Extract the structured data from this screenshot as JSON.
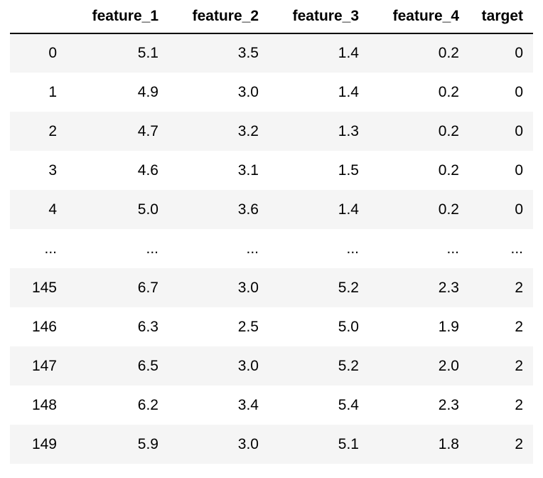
{
  "dataframe": {
    "index_header": "",
    "columns": [
      "feature_1",
      "feature_2",
      "feature_3",
      "feature_4",
      "target"
    ],
    "rows": [
      {
        "index": "0",
        "cells": [
          "5.1",
          "3.5",
          "1.4",
          "0.2",
          "0"
        ]
      },
      {
        "index": "1",
        "cells": [
          "4.9",
          "3.0",
          "1.4",
          "0.2",
          "0"
        ]
      },
      {
        "index": "2",
        "cells": [
          "4.7",
          "3.2",
          "1.3",
          "0.2",
          "0"
        ]
      },
      {
        "index": "3",
        "cells": [
          "4.6",
          "3.1",
          "1.5",
          "0.2",
          "0"
        ]
      },
      {
        "index": "4",
        "cells": [
          "5.0",
          "3.6",
          "1.4",
          "0.2",
          "0"
        ]
      },
      {
        "index": "...",
        "cells": [
          "...",
          "...",
          "...",
          "...",
          "..."
        ]
      },
      {
        "index": "145",
        "cells": [
          "6.7",
          "3.0",
          "5.2",
          "2.3",
          "2"
        ]
      },
      {
        "index": "146",
        "cells": [
          "6.3",
          "2.5",
          "5.0",
          "1.9",
          "2"
        ]
      },
      {
        "index": "147",
        "cells": [
          "6.5",
          "3.0",
          "5.2",
          "2.0",
          "2"
        ]
      },
      {
        "index": "148",
        "cells": [
          "6.2",
          "3.4",
          "5.4",
          "2.3",
          "2"
        ]
      },
      {
        "index": "149",
        "cells": [
          "5.9",
          "3.0",
          "5.1",
          "1.8",
          "2"
        ]
      }
    ]
  },
  "colors": {
    "striped_row": "#f5f5f5",
    "plain_row": "#ffffff",
    "header_rule": "#000000"
  }
}
